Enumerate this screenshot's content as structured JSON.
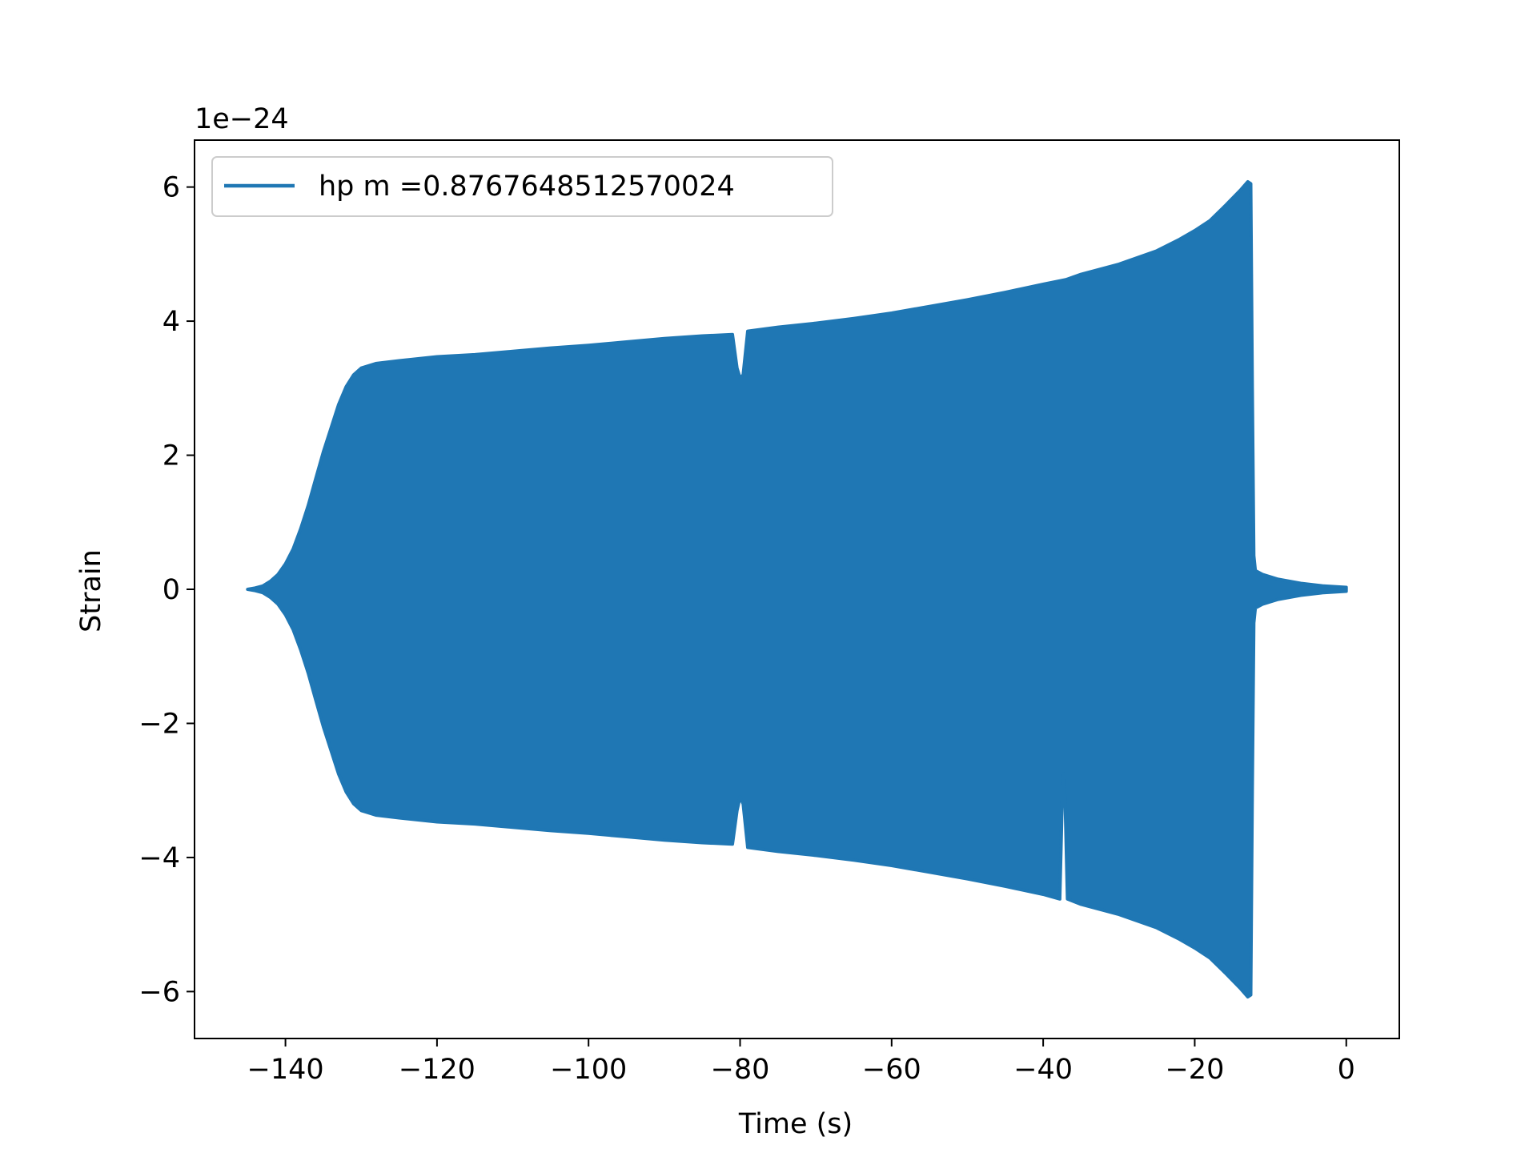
{
  "chart_data": {
    "type": "line",
    "title": "",
    "xlabel": "Time (s)",
    "ylabel": "Strain",
    "y_offset_text": "1e−24",
    "xlim": [
      -152,
      7
    ],
    "ylim": [
      -6.7,
      6.7
    ],
    "x_ticks": [
      -140,
      -120,
      -100,
      -80,
      -60,
      -40,
      -20,
      0
    ],
    "x_tick_labels": [
      "−140",
      "−120",
      "−100",
      "−80",
      "−60",
      "−40",
      "−20",
      "0"
    ],
    "y_ticks": [
      -6,
      -4,
      -2,
      0,
      2,
      4,
      6
    ],
    "y_tick_labels": [
      "−6",
      "−4",
      "−2",
      "0",
      "2",
      "4",
      "6"
    ],
    "grid": false,
    "legend_position": "top-left",
    "colors": {
      "series": "#1f77b4",
      "axes": "#000000",
      "background": "#ffffff"
    },
    "series": [
      {
        "name": "hp m =0.8767648512570024",
        "style": "oscillating-fill-envelope",
        "envelope_upper": [
          [
            -145,
            0.0
          ],
          [
            -144,
            0.02
          ],
          [
            -143,
            0.05
          ],
          [
            -142,
            0.12
          ],
          [
            -141,
            0.22
          ],
          [
            -140,
            0.38
          ],
          [
            -139,
            0.6
          ],
          [
            -138,
            0.9
          ],
          [
            -137,
            1.25
          ],
          [
            -136,
            1.65
          ],
          [
            -135,
            2.05
          ],
          [
            -134,
            2.4
          ],
          [
            -133,
            2.75
          ],
          [
            -132,
            3.02
          ],
          [
            -131,
            3.2
          ],
          [
            -130,
            3.3
          ],
          [
            -128,
            3.37
          ],
          [
            -125,
            3.41
          ],
          [
            -120,
            3.47
          ],
          [
            -115,
            3.5
          ],
          [
            -110,
            3.55
          ],
          [
            -105,
            3.6
          ],
          [
            -100,
            3.64
          ],
          [
            -95,
            3.69
          ],
          [
            -90,
            3.74
          ],
          [
            -85,
            3.78
          ],
          [
            -81,
            3.8
          ],
          [
            -80.4,
            3.3
          ],
          [
            -80,
            3.15
          ],
          [
            -79.6,
            3.2
          ],
          [
            -79,
            3.85
          ],
          [
            -75,
            3.91
          ],
          [
            -70,
            3.97
          ],
          [
            -65,
            4.04
          ],
          [
            -60,
            4.12
          ],
          [
            -55,
            4.22
          ],
          [
            -50,
            4.32
          ],
          [
            -45,
            4.43
          ],
          [
            -40,
            4.55
          ],
          [
            -37,
            4.62
          ],
          [
            -35,
            4.7
          ],
          [
            -30,
            4.85
          ],
          [
            -25,
            5.05
          ],
          [
            -22,
            5.22
          ],
          [
            -20,
            5.35
          ],
          [
            -18,
            5.5
          ],
          [
            -16,
            5.72
          ],
          [
            -14,
            5.95
          ],
          [
            -13,
            6.08
          ],
          [
            -12.6,
            6.05
          ],
          [
            -12.4,
            3.0
          ],
          [
            -12.2,
            0.5
          ],
          [
            -12,
            0.28
          ],
          [
            -11,
            0.22
          ],
          [
            -9,
            0.15
          ],
          [
            -6,
            0.09
          ],
          [
            -3,
            0.05
          ],
          [
            0,
            0.03
          ]
        ],
        "envelope_lower": [
          [
            -145,
            0.0
          ],
          [
            -144,
            -0.02
          ],
          [
            -143,
            -0.05
          ],
          [
            -142,
            -0.12
          ],
          [
            -141,
            -0.22
          ],
          [
            -140,
            -0.38
          ],
          [
            -139,
            -0.6
          ],
          [
            -138,
            -0.9
          ],
          [
            -137,
            -1.25
          ],
          [
            -136,
            -1.65
          ],
          [
            -135,
            -2.05
          ],
          [
            -134,
            -2.4
          ],
          [
            -133,
            -2.75
          ],
          [
            -132,
            -3.02
          ],
          [
            -131,
            -3.2
          ],
          [
            -130,
            -3.3
          ],
          [
            -128,
            -3.37
          ],
          [
            -125,
            -3.41
          ],
          [
            -120,
            -3.47
          ],
          [
            -115,
            -3.5
          ],
          [
            -110,
            -3.55
          ],
          [
            -105,
            -3.6
          ],
          [
            -100,
            -3.64
          ],
          [
            -95,
            -3.69
          ],
          [
            -90,
            -3.74
          ],
          [
            -85,
            -3.78
          ],
          [
            -81,
            -3.8
          ],
          [
            -80.4,
            -3.3
          ],
          [
            -80,
            -3.1
          ],
          [
            -79.6,
            -3.2
          ],
          [
            -79,
            -3.85
          ],
          [
            -75,
            -3.91
          ],
          [
            -70,
            -3.97
          ],
          [
            -65,
            -4.04
          ],
          [
            -60,
            -4.12
          ],
          [
            -55,
            -4.22
          ],
          [
            -50,
            -4.32
          ],
          [
            -45,
            -4.43
          ],
          [
            -40,
            -4.55
          ],
          [
            -37.8,
            -4.62
          ],
          [
            -37.5,
            -3.2
          ],
          [
            -37.3,
            -2.75
          ],
          [
            -37.1,
            -3.2
          ],
          [
            -36.8,
            -4.62
          ],
          [
            -35,
            -4.7
          ],
          [
            -30,
            -4.85
          ],
          [
            -25,
            -5.05
          ],
          [
            -22,
            -5.22
          ],
          [
            -20,
            -5.35
          ],
          [
            -18,
            -5.5
          ],
          [
            -16,
            -5.72
          ],
          [
            -14,
            -5.95
          ],
          [
            -13,
            -6.08
          ],
          [
            -12.6,
            -6.05
          ],
          [
            -12.4,
            -3.0
          ],
          [
            -12.2,
            -0.5
          ],
          [
            -12,
            -0.28
          ],
          [
            -11,
            -0.22
          ],
          [
            -9,
            -0.15
          ],
          [
            -6,
            -0.09
          ],
          [
            -3,
            -0.05
          ],
          [
            0,
            -0.03
          ]
        ]
      }
    ]
  }
}
